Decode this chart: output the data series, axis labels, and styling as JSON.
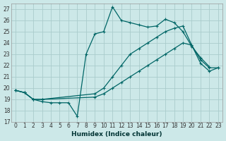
{
  "xlabel": "Humidex (Indice chaleur)",
  "bg_color": "#cce8e8",
  "grid_color": "#aacccc",
  "line_color": "#006666",
  "xlim": [
    -0.5,
    23.5
  ],
  "ylim": [
    17,
    27.5
  ],
  "yticks": [
    17,
    18,
    19,
    20,
    21,
    22,
    23,
    24,
    25,
    26,
    27
  ],
  "xticks": [
    0,
    1,
    2,
    3,
    4,
    5,
    6,
    7,
    8,
    9,
    10,
    11,
    12,
    13,
    14,
    15,
    16,
    17,
    18,
    19,
    20,
    21,
    22,
    23
  ],
  "series1_x": [
    0,
    1,
    2,
    3,
    4,
    5,
    6,
    7,
    8,
    9,
    10,
    11,
    12,
    13,
    14,
    15,
    16,
    17,
    18,
    19,
    20,
    21,
    22
  ],
  "series1_y": [
    19.8,
    19.6,
    19.0,
    18.8,
    18.7,
    18.7,
    18.7,
    17.5,
    23.0,
    24.8,
    25.0,
    27.2,
    26.0,
    25.8,
    25.6,
    25.4,
    25.5,
    26.1,
    25.8,
    25.0,
    23.7,
    22.7,
    21.9
  ],
  "series2_x": [
    0,
    1,
    2,
    3,
    9,
    10,
    11,
    12,
    13,
    14,
    15,
    16,
    17,
    18,
    19,
    20,
    21,
    22,
    23
  ],
  "series2_y": [
    19.8,
    19.6,
    19.0,
    19.0,
    19.5,
    20.0,
    21.0,
    22.0,
    23.0,
    23.5,
    24.0,
    24.5,
    25.0,
    25.3,
    25.5,
    23.8,
    22.5,
    21.8,
    21.8
  ],
  "series3_x": [
    0,
    1,
    2,
    3,
    9,
    10,
    11,
    12,
    13,
    14,
    15,
    16,
    17,
    18,
    19,
    20,
    21,
    22,
    23
  ],
  "series3_y": [
    19.8,
    19.6,
    19.0,
    19.0,
    19.2,
    19.5,
    20.0,
    20.5,
    21.0,
    21.5,
    22.0,
    22.5,
    23.0,
    23.5,
    24.0,
    23.8,
    22.2,
    21.5,
    21.8
  ]
}
